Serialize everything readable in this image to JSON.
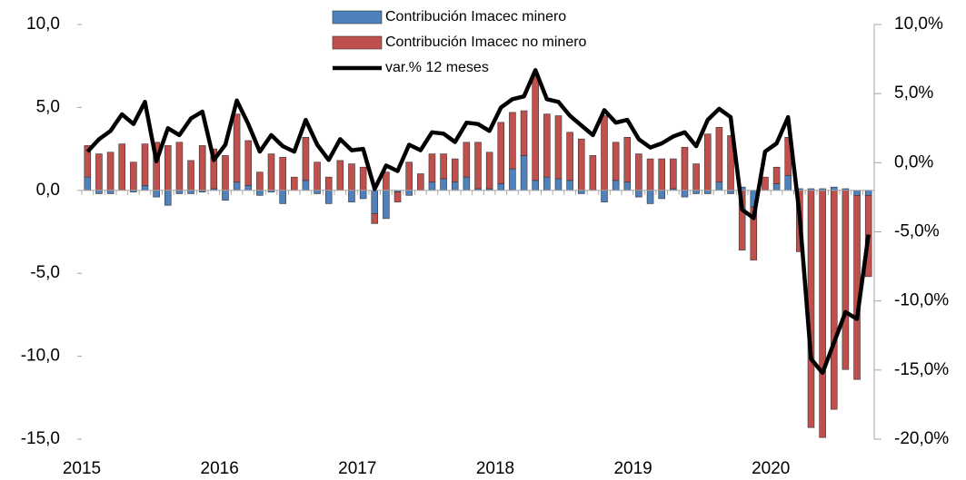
{
  "chart_data": {
    "type": "bar",
    "stacked": true,
    "categories": [
      "2015",
      null,
      null,
      null,
      null,
      null,
      null,
      null,
      null,
      null,
      null,
      null,
      "2016",
      null,
      null,
      null,
      null,
      null,
      null,
      null,
      null,
      null,
      null,
      null,
      "2017",
      null,
      null,
      null,
      null,
      null,
      null,
      null,
      null,
      null,
      null,
      null,
      "2018",
      null,
      null,
      null,
      null,
      null,
      null,
      null,
      null,
      null,
      null,
      null,
      "2019",
      null,
      null,
      null,
      null,
      null,
      null,
      null,
      null,
      null,
      null,
      null,
      "2020",
      null,
      null,
      null,
      null,
      null,
      null,
      null,
      null
    ],
    "series": [
      {
        "name": "Contribución Imacec minero",
        "color": "#4f81bd",
        "values": [
          0.8,
          -0.2,
          -0.2,
          0.0,
          -0.1,
          0.3,
          -0.4,
          -0.9,
          -0.2,
          -0.2,
          -0.1,
          0.1,
          -0.6,
          0.5,
          0.3,
          -0.3,
          -0.1,
          -0.8,
          0.0,
          0.6,
          -0.2,
          -0.8,
          0.0,
          -0.7,
          -0.5,
          -1.4,
          -1.7,
          -0.1,
          -0.3,
          0.0,
          0.5,
          0.7,
          0.5,
          0.8,
          0.1,
          0.1,
          0.4,
          1.3,
          2.1,
          0.6,
          0.8,
          0.7,
          0.6,
          -0.2,
          0.0,
          -0.7,
          0.6,
          0.5,
          -0.4,
          -0.8,
          -0.5,
          0.1,
          -0.4,
          -0.2,
          -0.2,
          0.5,
          -0.2,
          0.2,
          -1.0,
          0.0,
          0.4,
          0.9,
          0.1,
          0.1,
          0.1,
          0.2,
          0.1,
          -0.3,
          -0.3
        ]
      },
      {
        "name": "Contribución Imacec no minero",
        "color": "#c0504d",
        "values": [
          1.9,
          2.2,
          2.3,
          2.8,
          1.7,
          2.5,
          2.9,
          2.7,
          2.9,
          1.8,
          2.7,
          2.4,
          2.1,
          4.1,
          2.7,
          1.1,
          2.2,
          2.0,
          0.8,
          2.6,
          1.7,
          0.8,
          1.8,
          1.6,
          1.4,
          -0.6,
          1.1,
          -0.6,
          1.7,
          1.0,
          1.7,
          1.5,
          1.4,
          2.1,
          2.8,
          2.2,
          3.7,
          3.4,
          2.7,
          6.4,
          3.8,
          3.8,
          2.9,
          3.1,
          2.1,
          4.5,
          2.3,
          2.7,
          2.2,
          1.9,
          1.9,
          1.8,
          2.6,
          1.6,
          3.4,
          3.3,
          3.3,
          -3.6,
          -3.2,
          0.8,
          1.0,
          2.3,
          -3.7,
          -14.3,
          -14.9,
          -13.2,
          -10.8,
          -11.1,
          -4.9
        ]
      },
      {
        "name": "var.% 12 meses",
        "color": "#000000",
        "axis": "y2",
        "values": [
          0.8,
          1.7,
          2.3,
          3.5,
          2.8,
          4.4,
          0.1,
          2.5,
          2.0,
          3.2,
          3.7,
          0.2,
          1.3,
          4.5,
          2.8,
          0.8,
          2.0,
          1.2,
          0.8,
          3.1,
          1.3,
          0.2,
          1.7,
          0.9,
          1.0,
          -1.9,
          -0.2,
          -0.6,
          1.3,
          0.9,
          2.2,
          2.1,
          1.5,
          2.9,
          2.8,
          2.3,
          4.0,
          4.6,
          4.8,
          6.7,
          4.6,
          4.4,
          3.4,
          2.7,
          2.0,
          3.8,
          2.9,
          3.1,
          1.7,
          1.1,
          1.4,
          1.9,
          2.2,
          1.2,
          3.1,
          3.9,
          3.3,
          -3.4,
          -4.0,
          0.8,
          1.4,
          3.3,
          -3.8,
          -14.2,
          -15.2,
          -13.0,
          -10.8,
          -11.3,
          -5.2
        ]
      }
    ],
    "ylim": [
      -15,
      10
    ],
    "yticks": [
      {
        "value": -15,
        "label": "-15,0"
      },
      {
        "value": -10,
        "label": "-10,0"
      },
      {
        "value": -5,
        "label": "-5,0"
      },
      {
        "value": 0,
        "label": "0,0"
      },
      {
        "value": 5,
        "label": "5,0"
      },
      {
        "value": 10,
        "label": "10,0"
      }
    ],
    "y2lim": [
      -20,
      10
    ],
    "y2ticks": [
      {
        "value": -20,
        "label": "-20,0%"
      },
      {
        "value": -15,
        "label": "-15,0%"
      },
      {
        "value": -10,
        "label": "-10,0%"
      },
      {
        "value": -5,
        "label": "-5,0%"
      },
      {
        "value": 0,
        "label": "0,0%"
      },
      {
        "value": 5,
        "label": "5,0%"
      },
      {
        "value": 10,
        "label": "10,0%"
      }
    ],
    "legend": "top"
  }
}
